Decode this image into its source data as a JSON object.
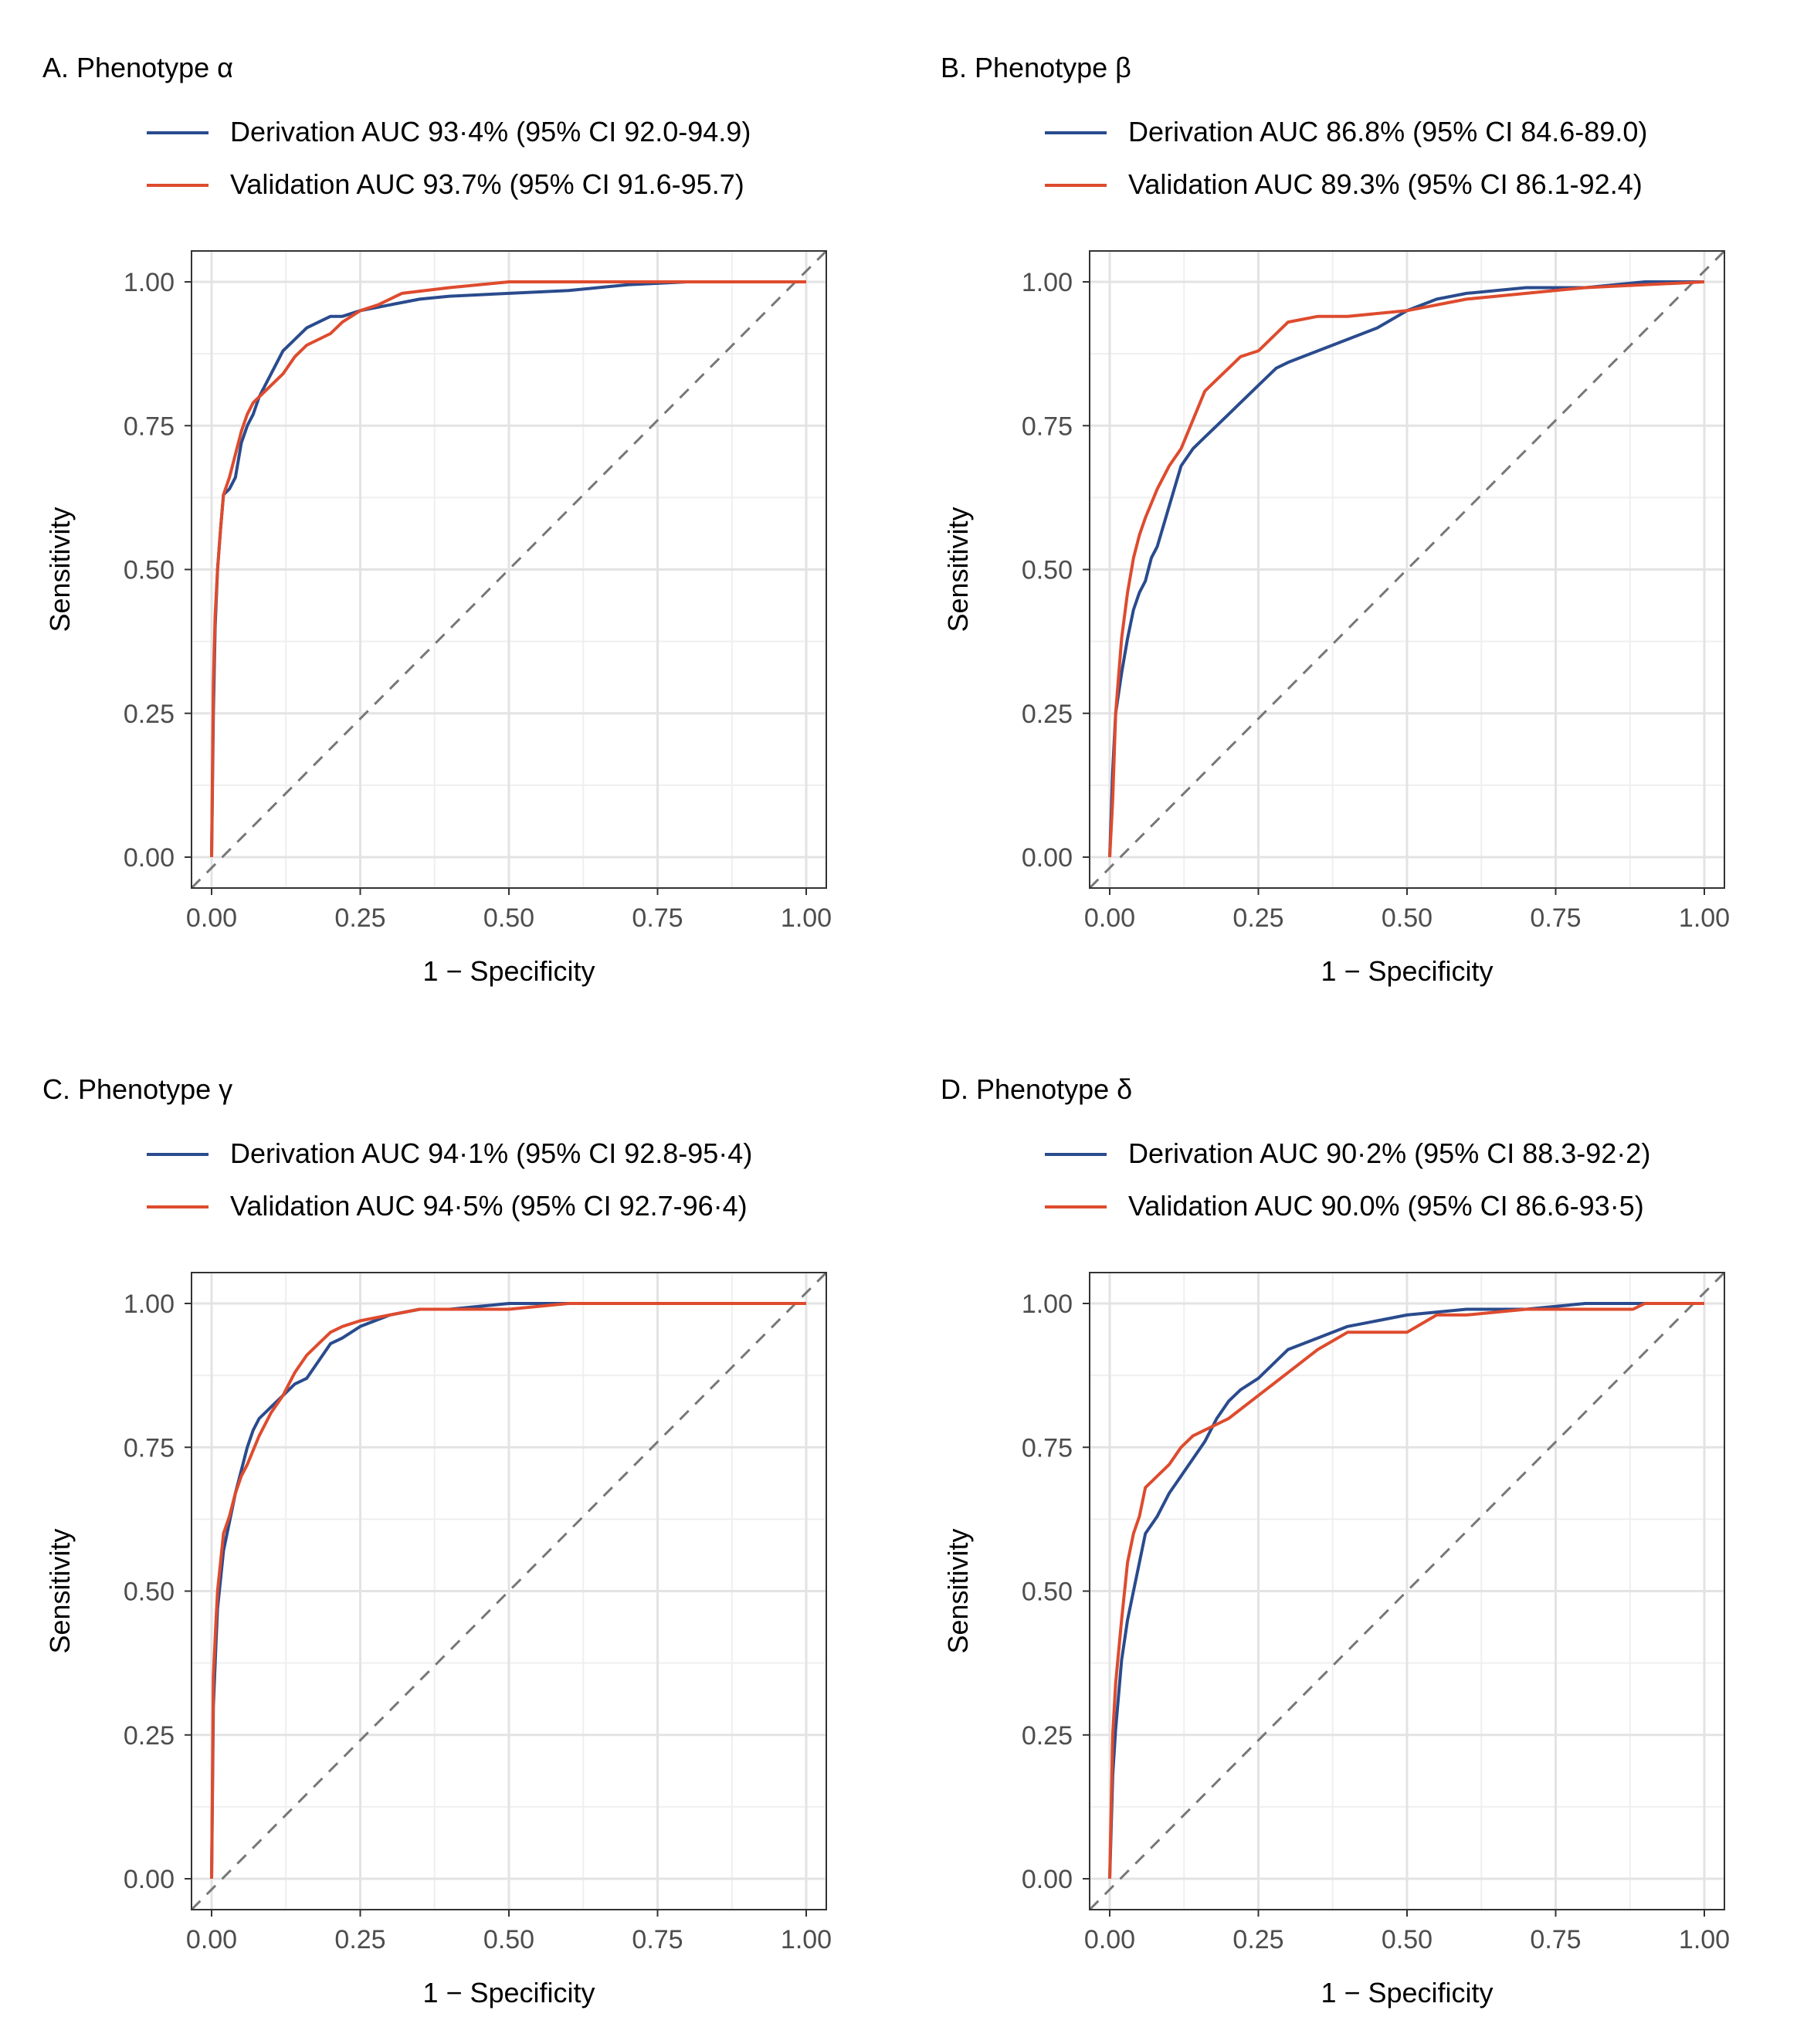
{
  "colors": {
    "derivation": "#2a4b8d",
    "validation": "#de4b2e",
    "diagonal": "#777777",
    "grid": "#e3e3e3",
    "tick_text": "#4d4d4d"
  },
  "chart_data": [
    {
      "type": "line",
      "panel_title": "A. Phenotype α",
      "xlabel": "1 − Specificity",
      "ylabel": "Sensitivity",
      "xlim": [
        0,
        1
      ],
      "ylim": [
        0,
        1
      ],
      "ticks": [
        "0.00",
        "0.25",
        "0.50",
        "0.75",
        "1.00"
      ],
      "tick_values": [
        0,
        0.25,
        0.5,
        0.75,
        1
      ],
      "legend_position": "top",
      "series": [
        {
          "name": "Derivation",
          "legend": "Derivation AUC 93·4% (95% CI 92.0-94.9)",
          "color_key": "derivation",
          "x": [
            0,
            0.003,
            0.006,
            0.01,
            0.015,
            0.02,
            0.03,
            0.04,
            0.05,
            0.06,
            0.07,
            0.08,
            0.09,
            0.1,
            0.12,
            0.14,
            0.16,
            0.18,
            0.2,
            0.22,
            0.25,
            0.3,
            0.35,
            0.4,
            0.5,
            0.6,
            0.65,
            0.7,
            0.8,
            1
          ],
          "y": [
            0,
            0.25,
            0.4,
            0.5,
            0.57,
            0.63,
            0.64,
            0.66,
            0.72,
            0.75,
            0.77,
            0.8,
            0.82,
            0.84,
            0.88,
            0.9,
            0.92,
            0.93,
            0.94,
            0.94,
            0.95,
            0.96,
            0.97,
            0.975,
            0.98,
            0.985,
            0.99,
            0.995,
            1.0,
            1.0
          ]
        },
        {
          "name": "Validation",
          "legend": "Validation AUC 93.7% (95% CI 91.6-95.7)",
          "color_key": "validation",
          "x": [
            0,
            0.003,
            0.006,
            0.01,
            0.015,
            0.02,
            0.03,
            0.04,
            0.05,
            0.06,
            0.07,
            0.08,
            0.1,
            0.12,
            0.14,
            0.16,
            0.18,
            0.2,
            0.22,
            0.25,
            0.28,
            0.32,
            0.4,
            0.5,
            0.6,
            0.8,
            1
          ],
          "y": [
            0,
            0.3,
            0.42,
            0.5,
            0.57,
            0.63,
            0.66,
            0.7,
            0.74,
            0.77,
            0.79,
            0.8,
            0.82,
            0.84,
            0.87,
            0.89,
            0.9,
            0.91,
            0.93,
            0.95,
            0.96,
            0.98,
            0.99,
            1.0,
            1.0,
            1.0,
            1.0
          ]
        }
      ]
    },
    {
      "type": "line",
      "panel_title": "B. Phenotype β",
      "xlabel": "1 − Specificity",
      "ylabel": "Sensitivity",
      "xlim": [
        0,
        1
      ],
      "ylim": [
        0,
        1
      ],
      "ticks": [
        "0.00",
        "0.25",
        "0.50",
        "0.75",
        "1.00"
      ],
      "tick_values": [
        0,
        0.25,
        0.5,
        0.75,
        1
      ],
      "legend_position": "top",
      "series": [
        {
          "name": "Derivation",
          "legend": "Derivation  AUC 86.8% (95% CI 84.6-89.0)",
          "color_key": "derivation",
          "x": [
            0,
            0.005,
            0.01,
            0.02,
            0.03,
            0.04,
            0.05,
            0.06,
            0.07,
            0.08,
            0.1,
            0.12,
            0.14,
            0.16,
            0.18,
            0.2,
            0.22,
            0.25,
            0.28,
            0.3,
            0.35,
            0.4,
            0.45,
            0.5,
            0.55,
            0.6,
            0.7,
            0.8,
            0.9,
            1
          ],
          "y": [
            0,
            0.15,
            0.25,
            0.32,
            0.38,
            0.43,
            0.46,
            0.48,
            0.52,
            0.54,
            0.61,
            0.68,
            0.71,
            0.73,
            0.75,
            0.77,
            0.79,
            0.82,
            0.85,
            0.86,
            0.88,
            0.9,
            0.92,
            0.95,
            0.97,
            0.98,
            0.99,
            0.99,
            1.0,
            1.0
          ]
        },
        {
          "name": "Validation",
          "legend": "Validation AUC 89.3% (95% CI 86.1-92.4)",
          "color_key": "validation",
          "x": [
            0,
            0.005,
            0.01,
            0.02,
            0.03,
            0.04,
            0.05,
            0.06,
            0.08,
            0.1,
            0.12,
            0.14,
            0.16,
            0.18,
            0.2,
            0.22,
            0.25,
            0.28,
            0.3,
            0.35,
            0.4,
            0.5,
            0.6,
            0.7,
            0.8,
            1
          ],
          "y": [
            0,
            0.1,
            0.25,
            0.38,
            0.46,
            0.52,
            0.56,
            0.59,
            0.64,
            0.68,
            0.71,
            0.76,
            0.81,
            0.83,
            0.85,
            0.87,
            0.88,
            0.91,
            0.93,
            0.94,
            0.94,
            0.95,
            0.97,
            0.98,
            0.99,
            1.0
          ]
        }
      ]
    },
    {
      "type": "line",
      "panel_title": "C. Phenotype γ",
      "xlabel": "1 − Specificity",
      "ylabel": "Sensitivity",
      "xlim": [
        0,
        1
      ],
      "ylim": [
        0,
        1
      ],
      "ticks": [
        "0.00",
        "0.25",
        "0.50",
        "0.75",
        "1.00"
      ],
      "tick_values": [
        0,
        0.25,
        0.5,
        0.75,
        1
      ],
      "legend_position": "top",
      "series": [
        {
          "name": "Derivation",
          "legend": "Derivation  AUC 94·1% (95% CI 92.8-95·4)",
          "color_key": "derivation",
          "x": [
            0,
            0.003,
            0.007,
            0.01,
            0.015,
            0.02,
            0.03,
            0.04,
            0.05,
            0.06,
            0.07,
            0.08,
            0.1,
            0.12,
            0.14,
            0.16,
            0.18,
            0.2,
            0.22,
            0.25,
            0.3,
            0.35,
            0.4,
            0.5,
            0.6,
            0.7,
            0.8,
            0.9,
            1
          ],
          "y": [
            0,
            0.3,
            0.4,
            0.47,
            0.52,
            0.57,
            0.62,
            0.67,
            0.71,
            0.75,
            0.78,
            0.8,
            0.82,
            0.84,
            0.86,
            0.87,
            0.9,
            0.93,
            0.94,
            0.96,
            0.98,
            0.99,
            0.99,
            1.0,
            1.0,
            1.0,
            1.0,
            1.0,
            1.0
          ]
        },
        {
          "name": "Validation",
          "legend": "Validation AUC 94·5% (95% CI 92.7-96·4)",
          "color_key": "validation",
          "x": [
            0,
            0.003,
            0.007,
            0.01,
            0.015,
            0.02,
            0.03,
            0.04,
            0.05,
            0.06,
            0.08,
            0.1,
            0.12,
            0.14,
            0.16,
            0.18,
            0.2,
            0.22,
            0.25,
            0.3,
            0.35,
            0.5,
            0.6,
            0.8,
            1
          ],
          "y": [
            0,
            0.35,
            0.44,
            0.5,
            0.55,
            0.6,
            0.63,
            0.67,
            0.7,
            0.72,
            0.77,
            0.81,
            0.84,
            0.88,
            0.91,
            0.93,
            0.95,
            0.96,
            0.97,
            0.98,
            0.99,
            0.99,
            1.0,
            1.0,
            1.0
          ]
        }
      ]
    },
    {
      "type": "line",
      "panel_title": "D. Phenotype δ",
      "xlabel": "1 − Specificity",
      "ylabel": "Sensitivity",
      "xlim": [
        0,
        1
      ],
      "ylim": [
        0,
        1
      ],
      "ticks": [
        "0.00",
        "0.25",
        "0.50",
        "0.75",
        "1.00"
      ],
      "tick_values": [
        0,
        0.25,
        0.5,
        0.75,
        1
      ],
      "legend_position": "top",
      "series": [
        {
          "name": "Derivation",
          "legend": "Derivation  AUC 90·2% (95% CI 88.3-92·2)",
          "color_key": "derivation",
          "x": [
            0,
            0.005,
            0.01,
            0.02,
            0.03,
            0.04,
            0.05,
            0.06,
            0.08,
            0.1,
            0.12,
            0.14,
            0.16,
            0.18,
            0.2,
            0.22,
            0.25,
            0.28,
            0.3,
            0.35,
            0.4,
            0.45,
            0.5,
            0.6,
            0.7,
            0.8,
            0.9,
            1
          ],
          "y": [
            0,
            0.18,
            0.26,
            0.38,
            0.45,
            0.5,
            0.55,
            0.6,
            0.63,
            0.67,
            0.7,
            0.73,
            0.76,
            0.8,
            0.83,
            0.85,
            0.87,
            0.9,
            0.92,
            0.94,
            0.96,
            0.97,
            0.98,
            0.99,
            0.99,
            1.0,
            1.0,
            1.0
          ]
        },
        {
          "name": "Validation",
          "legend": "Validation AUC 90.0% (95% CI 86.6-93·5)",
          "color_key": "validation",
          "x": [
            0,
            0.005,
            0.01,
            0.02,
            0.03,
            0.04,
            0.05,
            0.06,
            0.08,
            0.1,
            0.12,
            0.14,
            0.16,
            0.2,
            0.25,
            0.3,
            0.35,
            0.4,
            0.5,
            0.55,
            0.6,
            0.7,
            0.8,
            0.88,
            0.9,
            1
          ],
          "y": [
            0,
            0.25,
            0.34,
            0.45,
            0.55,
            0.6,
            0.63,
            0.68,
            0.7,
            0.72,
            0.75,
            0.77,
            0.78,
            0.8,
            0.84,
            0.88,
            0.92,
            0.95,
            0.95,
            0.98,
            0.98,
            0.99,
            0.99,
            0.99,
            1.0,
            1.0
          ]
        }
      ]
    }
  ]
}
